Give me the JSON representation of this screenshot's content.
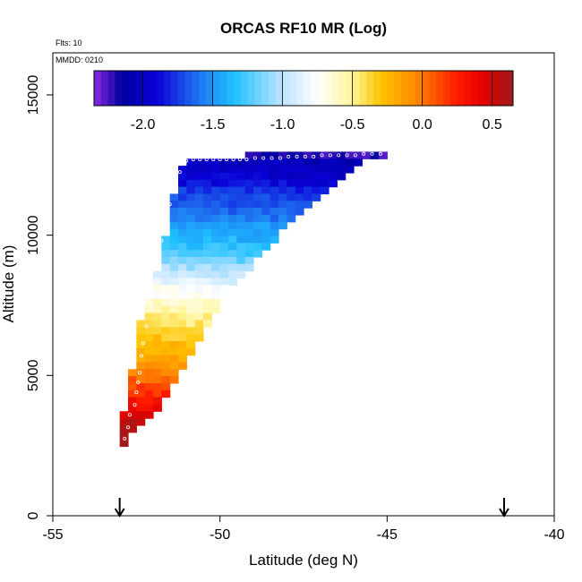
{
  "chart_data": {
    "type": "heatmap",
    "title": "ORCAS RF10 MR (Log)",
    "annotations": {
      "flights": "Flts: 10",
      "mmdd": "MMDD: 0210"
    },
    "xlabel": "Latitude (deg N)",
    "ylabel": "Altitude (m)",
    "xlim": [
      -55,
      -40
    ],
    "ylim": [
      0,
      16500
    ],
    "x_ticks": [
      -55,
      -50,
      -45,
      -40
    ],
    "x_tick_labels": [
      "-55",
      "-50",
      "-45",
      "-40"
    ],
    "y_ticks": [
      0,
      5000,
      10000,
      15000
    ],
    "y_tick_labels": [
      "0",
      "5000",
      "10000",
      "15000"
    ],
    "colorbar": {
      "range": [
        -2.35,
        0.65
      ],
      "ticks": [
        -2.0,
        -1.5,
        -1.0,
        -0.5,
        0.0,
        0.5
      ],
      "tick_labels": [
        "-2.0",
        "-1.5",
        "-1.0",
        "-0.5",
        "0.0",
        "0.5"
      ],
      "stops": [
        {
          "v": -2.35,
          "color": "#8a2be2"
        },
        {
          "v": -2.15,
          "color": "#0000a0"
        },
        {
          "v": -1.9,
          "color": "#0a00d8"
        },
        {
          "v": -1.6,
          "color": "#1f75f0"
        },
        {
          "v": -1.35,
          "color": "#1ec0ff"
        },
        {
          "v": -1.0,
          "color": "#bfe4ff"
        },
        {
          "v": -0.75,
          "color": "#ffffff"
        },
        {
          "v": -0.5,
          "color": "#fff59a"
        },
        {
          "v": -0.3,
          "color": "#ffc400"
        },
        {
          "v": -0.05,
          "color": "#ff8a00"
        },
        {
          "v": 0.25,
          "color": "#ff1a00"
        },
        {
          "v": 0.45,
          "color": "#e00000"
        },
        {
          "v": 0.65,
          "color": "#9b1c1c"
        }
      ]
    },
    "grid_cell": {
      "dlat": 0.25,
      "dalt": 250
    },
    "profile_rows": [
      {
        "alt": 12850,
        "lat_start": -49.25,
        "lat_end": -45.0,
        "value": -2.15
      },
      {
        "alt": 12600,
        "lat_start": -51.0,
        "lat_end": -45.75,
        "value": -2.0
      },
      {
        "alt": 12350,
        "lat_start": -51.25,
        "lat_end": -46.0,
        "value": -1.95
      },
      {
        "alt": 12100,
        "lat_start": -51.25,
        "lat_end": -46.25,
        "value": -1.9
      },
      {
        "alt": 11850,
        "lat_start": -51.25,
        "lat_end": -46.5,
        "value": -1.85
      },
      {
        "alt": 11600,
        "lat_start": -51.25,
        "lat_end": -46.75,
        "value": -1.75
      },
      {
        "alt": 11350,
        "lat_start": -51.5,
        "lat_end": -47.0,
        "value": -1.7
      },
      {
        "alt": 11100,
        "lat_start": -51.5,
        "lat_end": -47.25,
        "value": -1.65
      },
      {
        "alt": 10850,
        "lat_start": -51.5,
        "lat_end": -47.5,
        "value": -1.6
      },
      {
        "alt": 10600,
        "lat_start": -51.5,
        "lat_end": -47.75,
        "value": -1.55
      },
      {
        "alt": 10350,
        "lat_start": -51.5,
        "lat_end": -48.0,
        "value": -1.45
      },
      {
        "alt": 10100,
        "lat_start": -51.5,
        "lat_end": -48.25,
        "value": -1.4
      },
      {
        "alt": 9850,
        "lat_start": -51.75,
        "lat_end": -48.25,
        "value": -1.35
      },
      {
        "alt": 9600,
        "lat_start": -51.75,
        "lat_end": -48.5,
        "value": -1.3
      },
      {
        "alt": 9350,
        "lat_start": -51.75,
        "lat_end": -48.75,
        "value": -1.25
      },
      {
        "alt": 9100,
        "lat_start": -51.75,
        "lat_end": -49.0,
        "value": -1.15
      },
      {
        "alt": 8850,
        "lat_start": -51.75,
        "lat_end": -49.0,
        "value": -1.05
      },
      {
        "alt": 8600,
        "lat_start": -52.0,
        "lat_end": -49.25,
        "value": -0.95
      },
      {
        "alt": 8350,
        "lat_start": -52.0,
        "lat_end": -49.5,
        "value": -0.85
      },
      {
        "alt": 8100,
        "lat_start": -52.0,
        "lat_end": -49.75,
        "value": -0.75
      },
      {
        "alt": 7850,
        "lat_start": -52.0,
        "lat_end": -49.75,
        "value": -0.7
      },
      {
        "alt": 7600,
        "lat_start": -52.25,
        "lat_end": -50.0,
        "value": -0.6
      },
      {
        "alt": 7350,
        "lat_start": -52.25,
        "lat_end": -50.0,
        "value": -0.55
      },
      {
        "alt": 7100,
        "lat_start": -52.25,
        "lat_end": -50.25,
        "value": -0.48
      },
      {
        "alt": 6850,
        "lat_start": -52.5,
        "lat_end": -50.25,
        "value": -0.42
      },
      {
        "alt": 6600,
        "lat_start": -52.5,
        "lat_end": -50.5,
        "value": -0.35
      },
      {
        "alt": 6350,
        "lat_start": -52.5,
        "lat_end": -50.5,
        "value": -0.3
      },
      {
        "alt": 6100,
        "lat_start": -52.5,
        "lat_end": -50.75,
        "value": -0.25
      },
      {
        "alt": 5850,
        "lat_start": -52.5,
        "lat_end": -50.75,
        "value": -0.2
      },
      {
        "alt": 5600,
        "lat_start": -52.5,
        "lat_end": -51.0,
        "value": -0.15
      },
      {
        "alt": 5350,
        "lat_start": -52.5,
        "lat_end": -51.0,
        "value": -0.1
      },
      {
        "alt": 5100,
        "lat_start": -52.75,
        "lat_end": -51.25,
        "value": -0.05
      },
      {
        "alt": 4850,
        "lat_start": -52.75,
        "lat_end": -51.25,
        "value": 0.05
      },
      {
        "alt": 4600,
        "lat_start": -52.75,
        "lat_end": -51.5,
        "value": 0.15
      },
      {
        "alt": 4350,
        "lat_start": -52.75,
        "lat_end": -51.5,
        "value": 0.22
      },
      {
        "alt": 4100,
        "lat_start": -52.75,
        "lat_end": -51.75,
        "value": 0.3
      },
      {
        "alt": 3850,
        "lat_start": -52.75,
        "lat_end": -51.75,
        "value": 0.38
      },
      {
        "alt": 3600,
        "lat_start": -53.0,
        "lat_end": -52.0,
        "value": 0.48
      },
      {
        "alt": 3350,
        "lat_start": -53.0,
        "lat_end": -52.25,
        "value": 0.55
      },
      {
        "alt": 3100,
        "lat_start": -53.0,
        "lat_end": -52.5,
        "value": 0.6
      },
      {
        "alt": 2850,
        "lat_start": -53.0,
        "lat_end": -52.75,
        "value": 0.63
      },
      {
        "alt": 2600,
        "lat_start": -53.0,
        "lat_end": -52.75,
        "value": 0.65
      }
    ],
    "flight_track": [
      {
        "lat": -52.85,
        "alt": 2750
      },
      {
        "lat": -52.75,
        "alt": 3150
      },
      {
        "lat": -52.7,
        "alt": 3600
      },
      {
        "lat": -52.55,
        "alt": 3950
      },
      {
        "lat": -52.5,
        "alt": 4400
      },
      {
        "lat": -52.45,
        "alt": 4750
      },
      {
        "lat": -52.4,
        "alt": 5100
      },
      {
        "lat": -52.35,
        "alt": 5700
      },
      {
        "lat": -52.3,
        "alt": 6150
      },
      {
        "lat": -52.2,
        "alt": 6750
      },
      {
        "lat": -52.05,
        "alt": 7400
      },
      {
        "lat": -51.9,
        "alt": 8300
      },
      {
        "lat": -51.85,
        "alt": 9200
      },
      {
        "lat": -51.75,
        "alt": 9800
      },
      {
        "lat": -51.6,
        "alt": 10400
      },
      {
        "lat": -51.5,
        "alt": 11100
      },
      {
        "lat": -51.35,
        "alt": 11750
      },
      {
        "lat": -51.2,
        "alt": 12250
      },
      {
        "lat": -51.0,
        "alt": 12650
      },
      {
        "lat": -50.8,
        "alt": 12700
      },
      {
        "lat": -50.6,
        "alt": 12700
      },
      {
        "lat": -50.4,
        "alt": 12700
      },
      {
        "lat": -50.2,
        "alt": 12700
      },
      {
        "lat": -50.0,
        "alt": 12700
      },
      {
        "lat": -49.8,
        "alt": 12700
      },
      {
        "lat": -49.6,
        "alt": 12700
      },
      {
        "lat": -49.4,
        "alt": 12700
      },
      {
        "lat": -49.2,
        "alt": 12700
      },
      {
        "lat": -48.95,
        "alt": 12750
      },
      {
        "lat": -48.7,
        "alt": 12750
      },
      {
        "lat": -48.45,
        "alt": 12750
      },
      {
        "lat": -48.2,
        "alt": 12750
      },
      {
        "lat": -47.95,
        "alt": 12800
      },
      {
        "lat": -47.7,
        "alt": 12800
      },
      {
        "lat": -47.45,
        "alt": 12800
      },
      {
        "lat": -47.2,
        "alt": 12800
      },
      {
        "lat": -46.95,
        "alt": 12850
      },
      {
        "lat": -46.7,
        "alt": 12850
      },
      {
        "lat": -46.45,
        "alt": 12850
      },
      {
        "lat": -46.2,
        "alt": 12850
      },
      {
        "lat": -45.95,
        "alt": 12850
      },
      {
        "lat": -45.7,
        "alt": 12900
      },
      {
        "lat": -45.45,
        "alt": 12900
      },
      {
        "lat": -45.2,
        "alt": 12900
      }
    ],
    "arrow_markers": [
      {
        "lat": -53.0
      },
      {
        "lat": -41.5
      }
    ]
  }
}
